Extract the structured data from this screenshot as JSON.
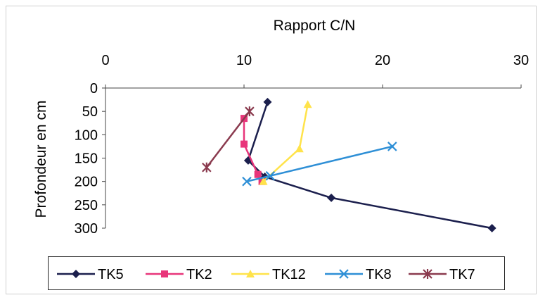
{
  "chart_data": {
    "type": "line",
    "title": "Rapport C/N",
    "xlabel": "Rapport C/N",
    "ylabel": "Profondeur en cm",
    "xlim": [
      0,
      30
    ],
    "ylim": [
      0,
      300
    ],
    "x_axis_position": "top",
    "y_axis_inverted": true,
    "x_ticks": [
      "0",
      "10",
      "20",
      "30"
    ],
    "y_ticks": [
      "0",
      "50",
      "100",
      "150",
      "200",
      "250",
      "300"
    ],
    "grid": false,
    "legend_position": "bottom",
    "series": [
      {
        "name": "TK5",
        "color": "#1b1f4d",
        "marker": "diamond",
        "points": [
          [
            11.7,
            30
          ],
          [
            10.3,
            155
          ],
          [
            11.5,
            190
          ],
          [
            16.3,
            235
          ],
          [
            27.9,
            300
          ]
        ]
      },
      {
        "name": "TK2",
        "color": "#e8357a",
        "marker": "square",
        "points": [
          [
            10.0,
            65
          ],
          [
            10.0,
            120
          ],
          [
            11.0,
            185
          ],
          [
            11.3,
            200
          ]
        ]
      },
      {
        "name": "TK12",
        "color": "#ffe34a",
        "marker": "triangle",
        "points": [
          [
            14.6,
            35
          ],
          [
            14.0,
            130
          ],
          [
            11.4,
            200
          ]
        ]
      },
      {
        "name": "TK8",
        "color": "#2e8fd6",
        "marker": "x",
        "points": [
          [
            20.7,
            125
          ],
          [
            11.9,
            188
          ],
          [
            10.2,
            200
          ]
        ]
      },
      {
        "name": "TK7",
        "color": "#8a3a4e",
        "marker": "star",
        "points": [
          [
            10.4,
            50
          ],
          [
            7.3,
            170
          ]
        ]
      }
    ]
  }
}
